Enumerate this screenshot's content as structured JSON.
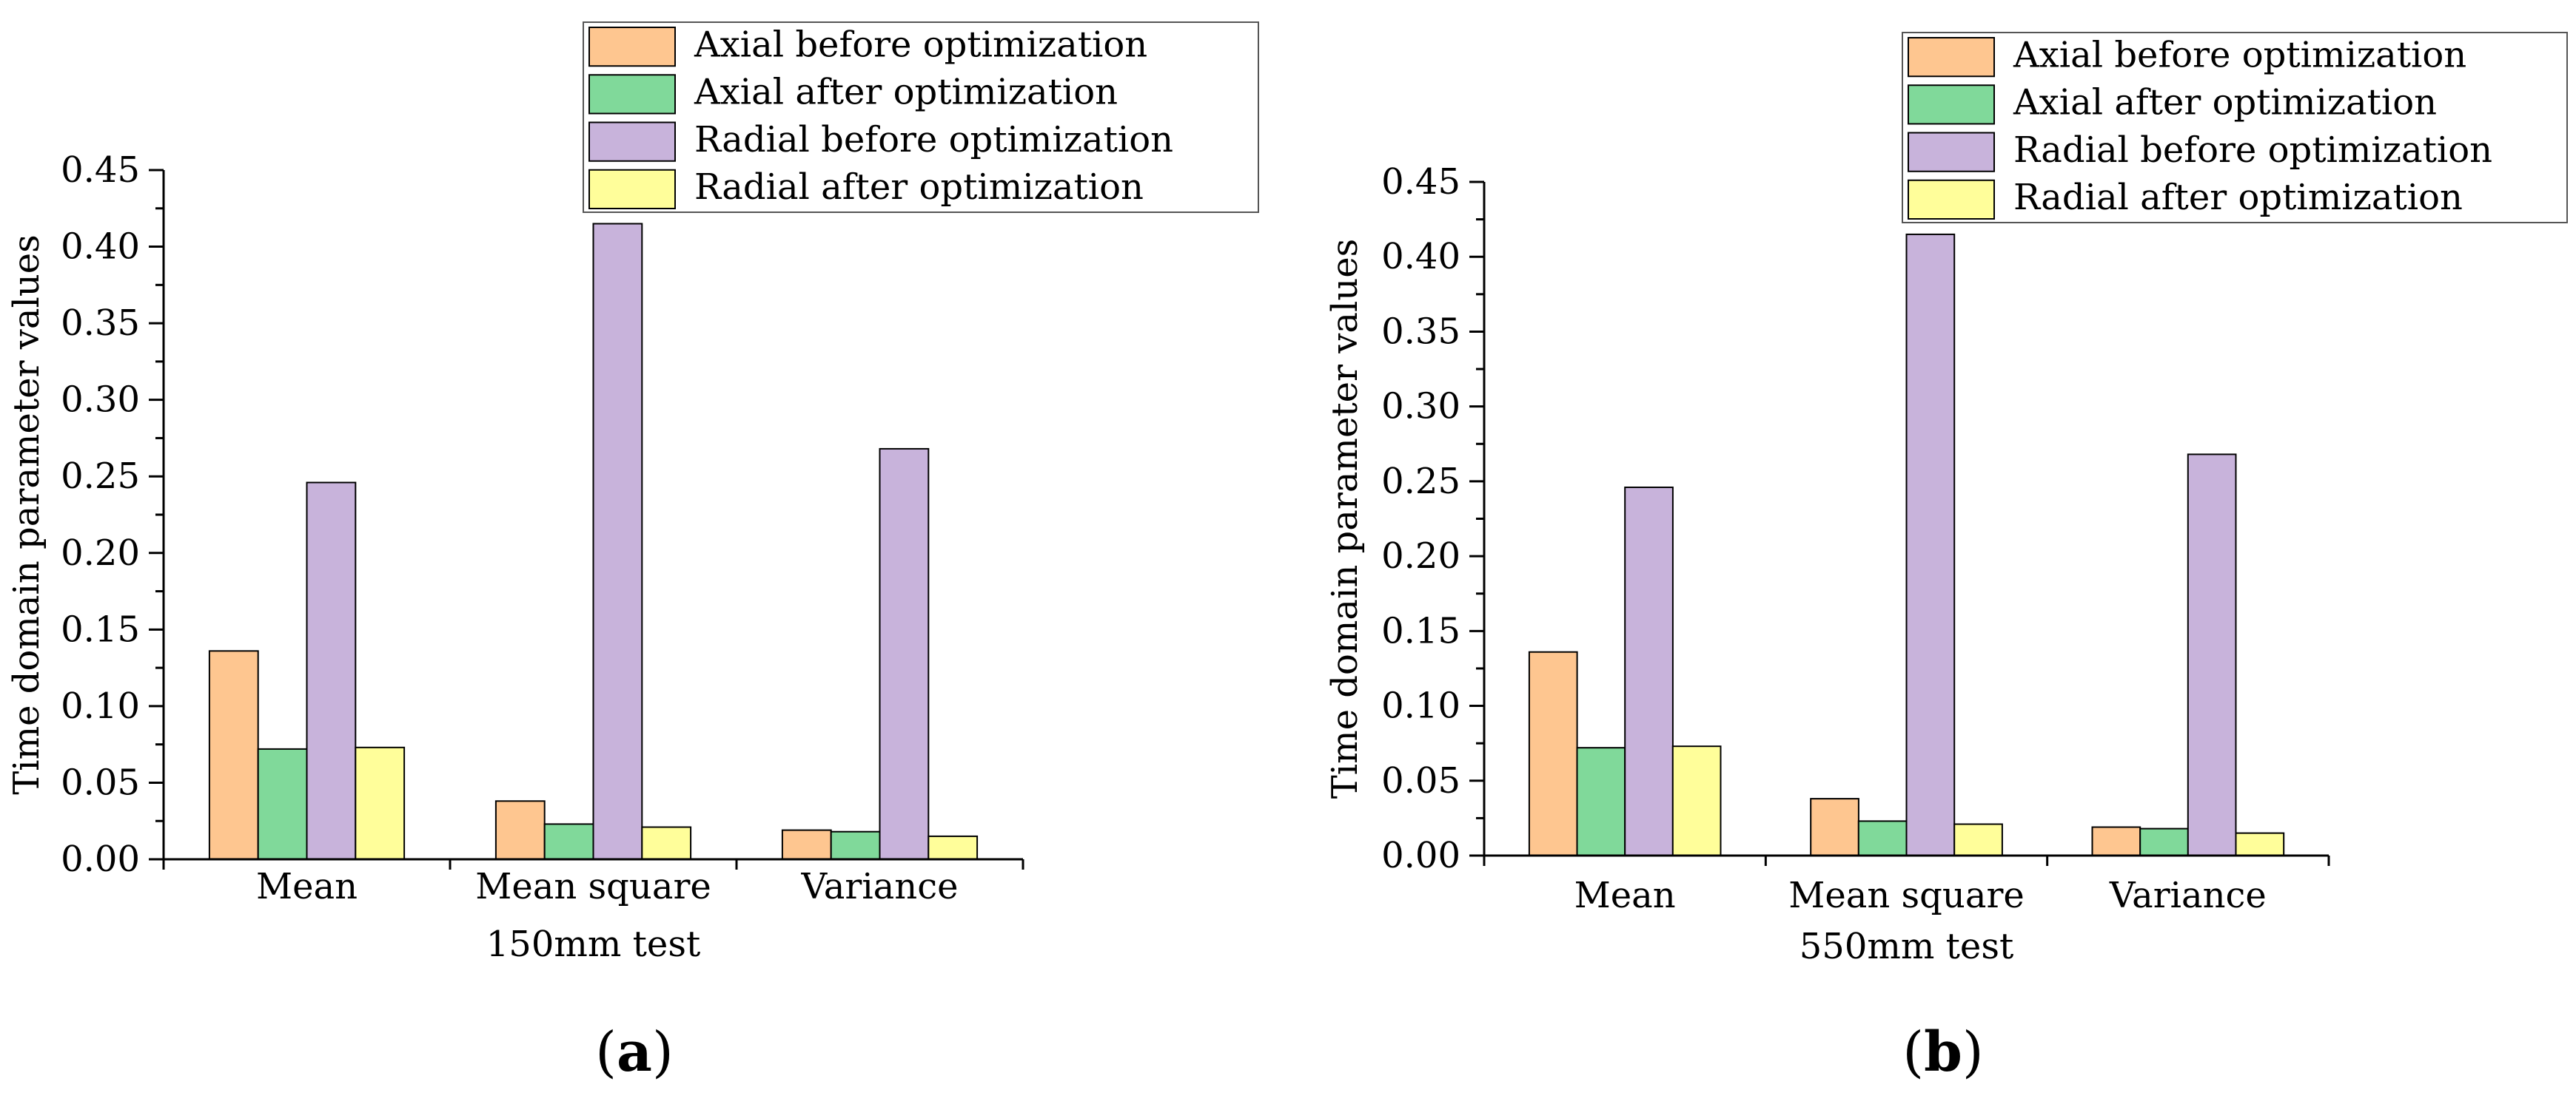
{
  "colors": {
    "series": [
      "#FEC690",
      "#80D99A",
      "#C8B3DB",
      "#FFFE9A"
    ],
    "axis": "#000000",
    "bar_stroke": "#000000"
  },
  "charts": [
    {
      "letter_prefix": "(",
      "letter": "a",
      "letter_suffix": ")",
      "xlabel": "150mm test",
      "ylabel": "Time domain parameter values"
    },
    {
      "letter_prefix": "(",
      "letter": "b",
      "letter_suffix": ")",
      "xlabel": "550mm test",
      "ylabel": "Time domain parameter values"
    }
  ],
  "chart_data": [
    {
      "type": "bar",
      "categories": [
        "Mean",
        "Mean square",
        "Variance"
      ],
      "series": [
        {
          "name": "Axial before optimization",
          "values": [
            0.136,
            0.038,
            0.019
          ]
        },
        {
          "name": "Axial after optimization",
          "values": [
            0.072,
            0.023,
            0.018
          ]
        },
        {
          "name": "Radial before optimization",
          "values": [
            0.246,
            0.415,
            0.268
          ]
        },
        {
          "name": "Radial after optimization",
          "values": [
            0.073,
            0.021,
            0.015
          ]
        }
      ],
      "xlabel": "150mm test",
      "ylabel": "Time domain parameter values",
      "ylim": [
        0,
        0.45
      ],
      "yticks": [
        "0.00",
        "0.05",
        "0.10",
        "0.15",
        "0.20",
        "0.25",
        "0.30",
        "0.35",
        "0.40",
        "0.45"
      ],
      "grid": false,
      "legend": "top-right"
    },
    {
      "type": "bar",
      "categories": [
        "Mean",
        "Mean square",
        "Variance"
      ],
      "series": [
        {
          "name": "Axial before optimization",
          "values": [
            0.136,
            0.038,
            0.019
          ]
        },
        {
          "name": "Axial after optimization",
          "values": [
            0.072,
            0.023,
            0.018
          ]
        },
        {
          "name": "Radial before optimization",
          "values": [
            0.246,
            0.415,
            0.268
          ]
        },
        {
          "name": "Radial after optimization",
          "values": [
            0.073,
            0.021,
            0.015
          ]
        }
      ],
      "xlabel": "550mm test",
      "ylabel": "Time domain parameter values",
      "ylim": [
        0,
        0.45
      ],
      "yticks": [
        "0.00",
        "0.05",
        "0.10",
        "0.15",
        "0.20",
        "0.25",
        "0.30",
        "0.35",
        "0.40",
        "0.45"
      ],
      "grid": false,
      "legend": "top-right"
    }
  ]
}
